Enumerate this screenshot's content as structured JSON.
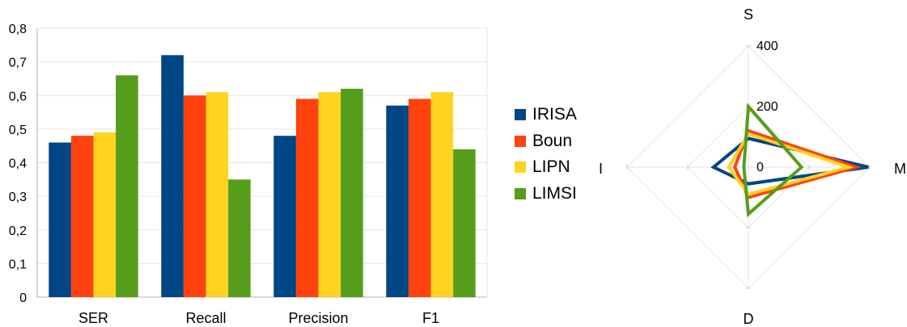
{
  "chart_data": [
    {
      "type": "bar",
      "categories": [
        "SER",
        "Recall",
        "Precision",
        "F1"
      ],
      "series": [
        {
          "name": "IRISA",
          "color": "#004586",
          "values": [
            0.46,
            0.72,
            0.48,
            0.57
          ]
        },
        {
          "name": "Boun",
          "color": "#ff420e",
          "values": [
            0.48,
            0.6,
            0.59,
            0.59
          ]
        },
        {
          "name": "LIPN",
          "color": "#ffd320",
          "values": [
            0.49,
            0.61,
            0.61,
            0.61
          ]
        },
        {
          "name": "LIMSI",
          "color": "#579d1c",
          "values": [
            0.66,
            0.35,
            0.62,
            0.44
          ]
        }
      ],
      "ylim": [
        0,
        0.8
      ],
      "yticks": [
        "0",
        "0,1",
        "0,2",
        "0,3",
        "0,4",
        "0,5",
        "0,6",
        "0,7",
        "0,8"
      ],
      "grid": true,
      "legend": "right"
    },
    {
      "type": "radar",
      "axes": [
        "S",
        "M",
        "D",
        "I"
      ],
      "rlim": [
        0,
        400
      ],
      "rticks": [
        "0",
        "200",
        "400"
      ],
      "series": [
        {
          "name": "IRISA",
          "color": "#004586",
          "values": [
            95,
            395,
            55,
            115
          ]
        },
        {
          "name": "Boun",
          "color": "#ff420e",
          "values": [
            120,
            355,
            100,
            45
          ]
        },
        {
          "name": "LIPN",
          "color": "#ffd320",
          "values": [
            110,
            330,
            90,
            65
          ]
        },
        {
          "name": "LIMSI",
          "color": "#579d1c",
          "values": [
            200,
            175,
            155,
            15
          ]
        }
      ]
    }
  ]
}
